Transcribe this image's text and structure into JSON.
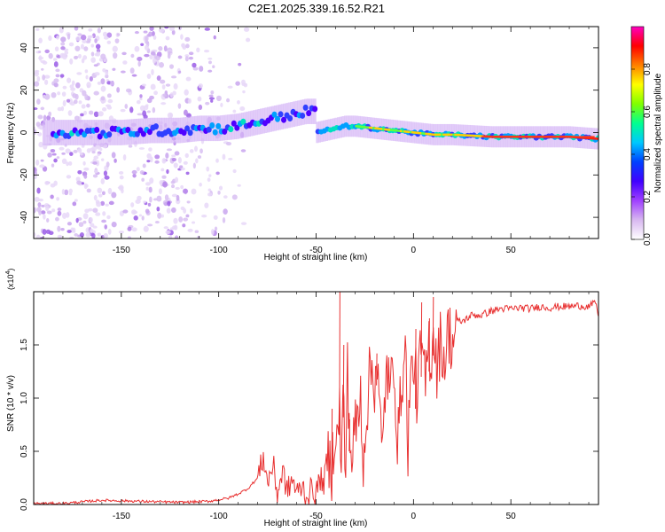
{
  "figure_title": "C2E1.2025.339.16.52.R21",
  "chart_data": [
    {
      "type": "heatmap",
      "title": "C2E1.2025.339.16.52.R21",
      "xlabel": "Height of straight line (km)",
      "ylabel": "Frequency (Hz)",
      "xlim": [
        -195,
        95
      ],
      "ylim": [
        -50,
        50
      ],
      "x_ticks": [
        -150,
        -100,
        -50,
        0,
        50
      ],
      "y_ticks": [
        -40,
        -20,
        0,
        20,
        40
      ],
      "x_tick_labels": [
        "-150",
        "-100",
        "-50",
        "0",
        "50"
      ],
      "y_tick_labels": [
        "-40",
        "-20",
        "0",
        "20",
        "40"
      ],
      "ridge": {
        "x": [
          -180,
          -165,
          -150,
          -135,
          -120,
          -110,
          -100,
          -90,
          -80,
          -70,
          -60,
          -55,
          -50,
          -45,
          -40,
          -35,
          -30,
          -20,
          -10,
          0,
          10,
          20,
          40,
          60,
          80,
          95
        ],
        "y": [
          0,
          0,
          0,
          1,
          1,
          2,
          2,
          3,
          5,
          7,
          9,
          10,
          0,
          1,
          2,
          3,
          3,
          2,
          1,
          0,
          -1,
          -1,
          -2,
          -2,
          -2,
          -3
        ]
      },
      "colorbar": {
        "label": "Normalized spectral amplitude",
        "range": [
          0.0,
          1.0
        ],
        "ticks": [
          0.0,
          0.2,
          0.4,
          0.6,
          0.8
        ],
        "tick_labels": [
          "0.0",
          "0.2",
          "0.4",
          "0.6",
          "0.8"
        ],
        "colors": [
          "#ffffff",
          "#d8b8f0",
          "#a040ff",
          "#4000ff",
          "#0040ff",
          "#00c8ff",
          "#00ff90",
          "#80ff00",
          "#ffff00",
          "#ff8000",
          "#ff0000",
          "#ff00c0"
        ]
      }
    },
    {
      "type": "line",
      "xlabel": "Height of straight line (km)",
      "ylabel": "SNR (10 * v/v)",
      "y_scale_label": "(x10",
      "y_scale_exp": "4",
      "y_scale_close": ")",
      "xlim": [
        -195,
        95
      ],
      "ylim": [
        0,
        2.0
      ],
      "x_ticks": [
        -150,
        -100,
        -50,
        0,
        50
      ],
      "y_ticks": [
        0.0,
        0.5,
        1.0,
        1.5
      ],
      "x_tick_labels": [
        "-150",
        "-100",
        "-50",
        "0",
        "50"
      ],
      "y_tick_labels": [
        "0.0",
        "0.5",
        "1.0",
        "1.5"
      ],
      "color": "#e83030",
      "series": [
        {
          "name": "SNR",
          "x": [
            -195,
            -180,
            -160,
            -140,
            -120,
            -105,
            -95,
            -90,
            -85,
            -80,
            -77,
            -75,
            -72,
            -70,
            -67,
            -65,
            -62,
            -60,
            -57,
            -55,
            -52,
            -50,
            -48,
            -46,
            -44,
            -42,
            -40,
            -39,
            -38,
            -37,
            -36,
            -35,
            -34,
            -33,
            -32,
            -30,
            -28,
            -27,
            -26,
            -24,
            -22,
            -20,
            -19,
            -18,
            -16,
            -14,
            -12,
            -10,
            -8,
            -6,
            -4,
            -3,
            -2,
            0,
            2,
            4,
            6,
            8,
            9,
            10,
            12,
            14,
            16,
            18,
            20,
            22,
            25,
            30,
            35,
            40,
            45,
            50,
            55,
            60,
            65,
            70,
            75,
            80,
            85,
            90,
            92,
            94,
            95
          ],
          "y": [
            0.01,
            0.01,
            0.04,
            0.03,
            0.02,
            0.03,
            0.06,
            0.1,
            0.15,
            0.25,
            0.45,
            0.2,
            0.38,
            0.1,
            0.32,
            0.12,
            0.24,
            0.1,
            0.18,
            0.07,
            0.15,
            0.1,
            0.25,
            0.2,
            0.42,
            0.35,
            0.8,
            0.5,
            0.95,
            0.3,
            1.12,
            0.15,
            1.3,
            0.8,
            0.4,
            0.7,
            0.85,
            1.05,
            0.4,
            0.9,
            1.3,
            1.15,
            1.42,
            1.1,
            0.4,
            1.35,
            1.0,
            1.4,
            0.55,
            1.2,
            1.45,
            0.5,
            1.0,
            1.4,
            1.0,
            1.5,
            1.1,
            1.55,
            1.3,
            1.7,
            1.3,
            1.55,
            1.35,
            1.65,
            1.5,
            1.72,
            1.72,
            1.78,
            1.78,
            1.82,
            1.84,
            1.84,
            1.85,
            1.84,
            1.86,
            1.85,
            1.86,
            1.86,
            1.87,
            1.86,
            1.88,
            1.9,
            1.7
          ]
        }
      ],
      "spikes": [
        {
          "x": -42,
          "y": 0.9
        },
        {
          "x": -38,
          "y": 2.0
        },
        {
          "x": -36,
          "y": 1.5
        },
        {
          "x": -33,
          "y": 0.8
        },
        {
          "x": -19,
          "y": 1.42
        },
        {
          "x": 1,
          "y": 1.65
        },
        {
          "x": 4,
          "y": 1.9
        },
        {
          "x": 8,
          "y": 1.75
        },
        {
          "x": 10,
          "y": 1.95
        }
      ]
    }
  ]
}
